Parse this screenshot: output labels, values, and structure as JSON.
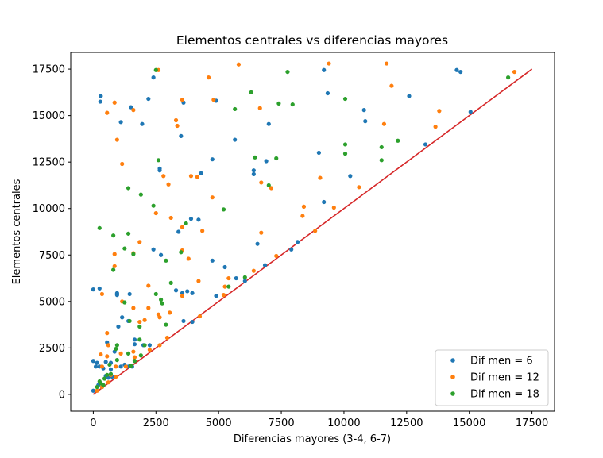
{
  "chart_data": {
    "type": "scatter",
    "title": "Elementos centrales vs diferencias mayores",
    "xlabel": "Diferencias mayores (3-4, 6-7)",
    "ylabel": "Elementos centrales",
    "xlim": [
      -900,
      18400
    ],
    "ylim": [
      -900,
      18400
    ],
    "xticks": [
      0,
      2500,
      5000,
      7500,
      10000,
      12500,
      15000,
      17500
    ],
    "yticks": [
      0,
      2500,
      5000,
      7500,
      10000,
      12500,
      15000,
      17500
    ],
    "xtick_labels": [
      "0",
      "2500",
      "5000",
      "7500",
      "10000",
      "12500",
      "15000",
      "17500"
    ],
    "ytick_labels": [
      "0",
      "2500",
      "5000",
      "7500",
      "10000",
      "12500",
      "15000",
      "17500"
    ],
    "grid": false,
    "legend_position": "bottom-right",
    "reference_line": {
      "x": [
        0,
        17500
      ],
      "y": [
        0,
        17500
      ],
      "color": "#d62728"
    },
    "series": [
      {
        "name": "Dif men = 6",
        "color": "#1f77b4",
        "points": [
          [
            300,
            16050
          ],
          [
            280,
            15750
          ],
          [
            2200,
            15900
          ],
          [
            2400,
            17050
          ],
          [
            1500,
            15450
          ],
          [
            1100,
            14650
          ],
          [
            1950,
            14550
          ],
          [
            3600,
            15700
          ],
          [
            4900,
            15800
          ],
          [
            3500,
            13900
          ],
          [
            5650,
            13700
          ],
          [
            6400,
            12050
          ],
          [
            6400,
            11850
          ],
          [
            6900,
            12550
          ],
          [
            7000,
            14550
          ],
          [
            9200,
            17450
          ],
          [
            9350,
            16200
          ],
          [
            9000,
            13000
          ],
          [
            10800,
            15300
          ],
          [
            10850,
            14700
          ],
          [
            12600,
            16050
          ],
          [
            14500,
            17450
          ],
          [
            14650,
            17350
          ],
          [
            15050,
            15200
          ],
          [
            13250,
            13450
          ],
          [
            10250,
            11750
          ],
          [
            9200,
            10350
          ],
          [
            2650,
            12050
          ],
          [
            2650,
            12150
          ],
          [
            4750,
            12650
          ],
          [
            4300,
            11900
          ],
          [
            3900,
            9450
          ],
          [
            4200,
            9400
          ],
          [
            3400,
            8750
          ],
          [
            2400,
            7800
          ],
          [
            2700,
            7500
          ],
          [
            4750,
            7200
          ],
          [
            5250,
            6850
          ],
          [
            5700,
            6250
          ],
          [
            6550,
            8100
          ],
          [
            6050,
            6100
          ],
          [
            6850,
            6950
          ],
          [
            8150,
            8200
          ],
          [
            7900,
            7800
          ],
          [
            0,
            5650
          ],
          [
            250,
            5700
          ],
          [
            950,
            5450
          ],
          [
            950,
            5350
          ],
          [
            1450,
            5400
          ],
          [
            1000,
            3650
          ],
          [
            1150,
            4150
          ],
          [
            1400,
            3950
          ],
          [
            3300,
            5600
          ],
          [
            3550,
            5450
          ],
          [
            3750,
            5550
          ],
          [
            3950,
            5450
          ],
          [
            4900,
            5300
          ],
          [
            3600,
            3950
          ],
          [
            3950,
            3900
          ],
          [
            2000,
            2650
          ],
          [
            2250,
            2650
          ],
          [
            1650,
            2950
          ],
          [
            1650,
            2700
          ],
          [
            550,
            2800
          ],
          [
            850,
            2300
          ],
          [
            500,
            1750
          ],
          [
            700,
            1700
          ],
          [
            0,
            1800
          ],
          [
            150,
            1700
          ],
          [
            100,
            1500
          ],
          [
            250,
            1500
          ],
          [
            400,
            1400
          ],
          [
            700,
            1350
          ],
          [
            1100,
            1500
          ],
          [
            1400,
            1500
          ],
          [
            1550,
            1500
          ],
          [
            1250,
            1600
          ],
          [
            500,
            1000
          ],
          [
            600,
            900
          ],
          [
            750,
            950
          ],
          [
            200,
            500
          ],
          [
            350,
            400
          ],
          [
            0,
            200
          ]
        ]
      },
      {
        "name": "Dif men = 12",
        "color": "#ff7f0e",
        "points": [
          [
            2600,
            17450
          ],
          [
            4600,
            17050
          ],
          [
            5800,
            17750
          ],
          [
            9400,
            17800
          ],
          [
            11700,
            17800
          ],
          [
            16800,
            17350
          ],
          [
            11900,
            16600
          ],
          [
            13800,
            15250
          ],
          [
            13650,
            14400
          ],
          [
            11600,
            14550
          ],
          [
            850,
            15700
          ],
          [
            550,
            15150
          ],
          [
            1600,
            15300
          ],
          [
            3550,
            15850
          ],
          [
            4800,
            15850
          ],
          [
            6650,
            15400
          ],
          [
            3300,
            14750
          ],
          [
            3350,
            14450
          ],
          [
            950,
            13700
          ],
          [
            1150,
            12400
          ],
          [
            2800,
            11750
          ],
          [
            3000,
            11300
          ],
          [
            3900,
            11750
          ],
          [
            4150,
            11700
          ],
          [
            6700,
            11400
          ],
          [
            7100,
            11100
          ],
          [
            9050,
            11650
          ],
          [
            10600,
            11150
          ],
          [
            9600,
            10050
          ],
          [
            8400,
            10100
          ],
          [
            8350,
            9600
          ],
          [
            8850,
            8800
          ],
          [
            4750,
            10600
          ],
          [
            2500,
            9750
          ],
          [
            3100,
            9500
          ],
          [
            3550,
            9000
          ],
          [
            4350,
            8800
          ],
          [
            1850,
            8200
          ],
          [
            850,
            7550
          ],
          [
            1600,
            7600
          ],
          [
            3550,
            7750
          ],
          [
            3800,
            7300
          ],
          [
            6700,
            8700
          ],
          [
            7300,
            7450
          ],
          [
            850,
            6900
          ],
          [
            2200,
            5850
          ],
          [
            3550,
            5300
          ],
          [
            4200,
            6100
          ],
          [
            5400,
            6250
          ],
          [
            5250,
            5800
          ],
          [
            5200,
            5350
          ],
          [
            6400,
            6650
          ],
          [
            350,
            5400
          ],
          [
            1150,
            5000
          ],
          [
            1600,
            4650
          ],
          [
            2200,
            4650
          ],
          [
            2600,
            4300
          ],
          [
            2650,
            4150
          ],
          [
            3050,
            4400
          ],
          [
            1850,
            3900
          ],
          [
            2050,
            4000
          ],
          [
            4250,
            4200
          ],
          [
            550,
            3300
          ],
          [
            300,
            2150
          ],
          [
            550,
            2050
          ],
          [
            600,
            2650
          ],
          [
            1100,
            2200
          ],
          [
            1600,
            2300
          ],
          [
            1650,
            2000
          ],
          [
            2250,
            2400
          ],
          [
            2650,
            2650
          ],
          [
            2950,
            3050
          ],
          [
            350,
            1500
          ],
          [
            900,
            1500
          ],
          [
            1300,
            1500
          ],
          [
            700,
            1050
          ],
          [
            900,
            950
          ],
          [
            600,
            650
          ],
          [
            400,
            500
          ],
          [
            350,
            400
          ],
          [
            150,
            200
          ]
        ]
      },
      {
        "name": "Dif men = 18",
        "color": "#2ca02c",
        "points": [
          [
            2500,
            17450
          ],
          [
            6300,
            16250
          ],
          [
            7750,
            17350
          ],
          [
            5650,
            15350
          ],
          [
            7400,
            15650
          ],
          [
            7950,
            15600
          ],
          [
            10050,
            15900
          ],
          [
            10050,
            13450
          ],
          [
            10050,
            12950
          ],
          [
            11500,
            13300
          ],
          [
            12150,
            13650
          ],
          [
            11500,
            12600
          ],
          [
            2600,
            12600
          ],
          [
            6450,
            12750
          ],
          [
            7300,
            12700
          ],
          [
            1400,
            11100
          ],
          [
            1900,
            10750
          ],
          [
            2400,
            10150
          ],
          [
            7000,
            11250
          ],
          [
            5200,
            9950
          ],
          [
            250,
            8950
          ],
          [
            800,
            8550
          ],
          [
            1400,
            8650
          ],
          [
            1250,
            7850
          ],
          [
            1600,
            7550
          ],
          [
            2900,
            7200
          ],
          [
            3500,
            7650
          ],
          [
            3700,
            9200
          ],
          [
            800,
            6700
          ],
          [
            3100,
            6000
          ],
          [
            6050,
            6300
          ],
          [
            5400,
            5800
          ],
          [
            2500,
            5400
          ],
          [
            2700,
            5100
          ],
          [
            2750,
            4900
          ],
          [
            1250,
            4950
          ],
          [
            1850,
            3650
          ],
          [
            1450,
            3950
          ],
          [
            2900,
            3750
          ],
          [
            900,
            2450
          ],
          [
            950,
            2650
          ],
          [
            1400,
            2200
          ],
          [
            1850,
            2950
          ],
          [
            2050,
            2650
          ],
          [
            1900,
            2100
          ],
          [
            1650,
            1800
          ],
          [
            1500,
            1550
          ],
          [
            650,
            1600
          ],
          [
            950,
            1850
          ],
          [
            700,
            1100
          ],
          [
            550,
            1050
          ],
          [
            450,
            850
          ],
          [
            250,
            700
          ],
          [
            300,
            600
          ],
          [
            150,
            400
          ],
          [
            400,
            500
          ],
          [
            16550,
            17050
          ]
        ]
      }
    ]
  }
}
